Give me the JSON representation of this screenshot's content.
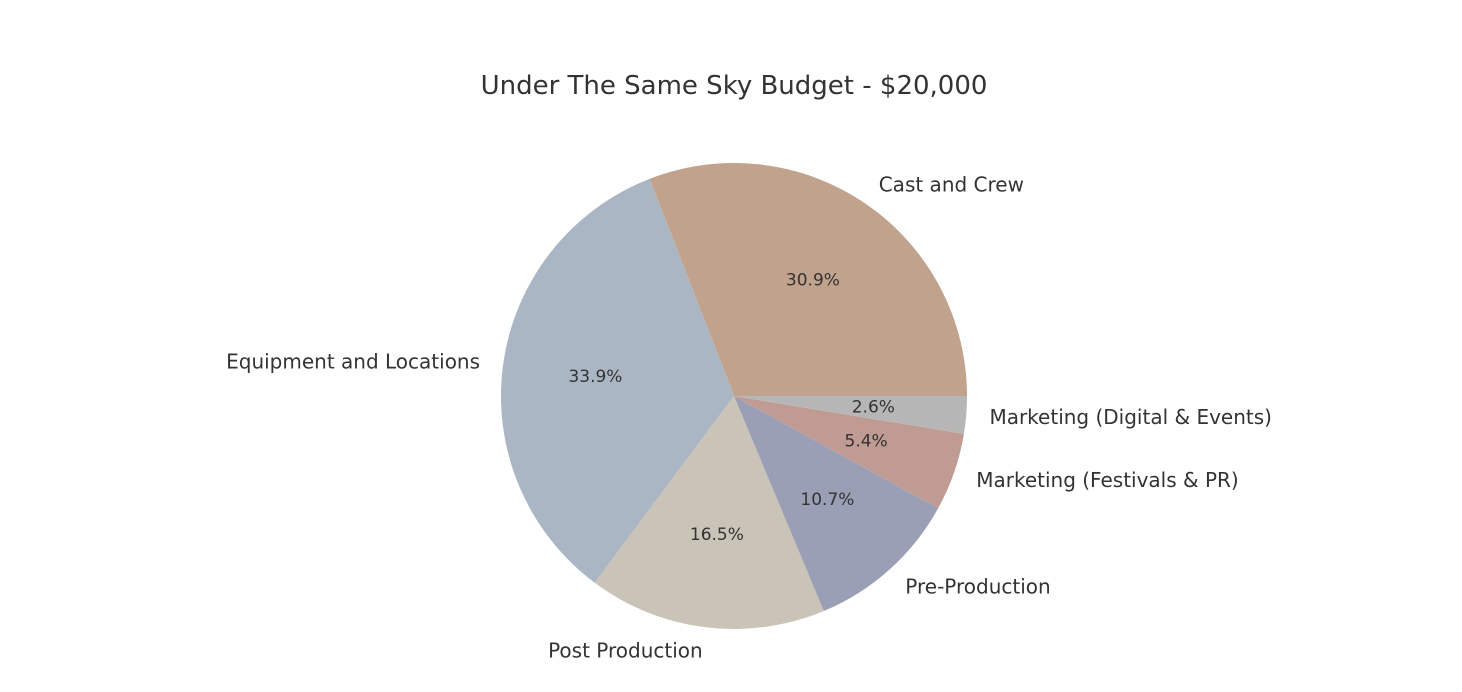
{
  "chart_data": {
    "type": "pie",
    "title": "Under The Same Sky Budget - $20,000",
    "slices": [
      {
        "label": "Cast and Crew",
        "value": 30.9,
        "pct_label": "30.9%",
        "color": "#c1a28c"
      },
      {
        "label": "Equipment and Locations",
        "value": 33.9,
        "pct_label": "33.9%",
        "color": "#abb6c4"
      },
      {
        "label": "Post Production",
        "value": 16.5,
        "pct_label": "16.5%",
        "color": "#c9c3b8"
      },
      {
        "label": "Pre-Production",
        "value": 10.7,
        "pct_label": "10.7%",
        "color": "#9b9fb5"
      },
      {
        "label": "Marketing (Festivals & PR)",
        "value": 5.4,
        "pct_label": "5.4%",
        "color": "#bf9b94"
      },
      {
        "label": "Marketing (Digital & Events)",
        "value": 2.6,
        "pct_label": "2.6%",
        "color": "#b6b6b6"
      }
    ],
    "start_angle_deg": 0,
    "direction": "counterclockwise",
    "legend": "none"
  }
}
